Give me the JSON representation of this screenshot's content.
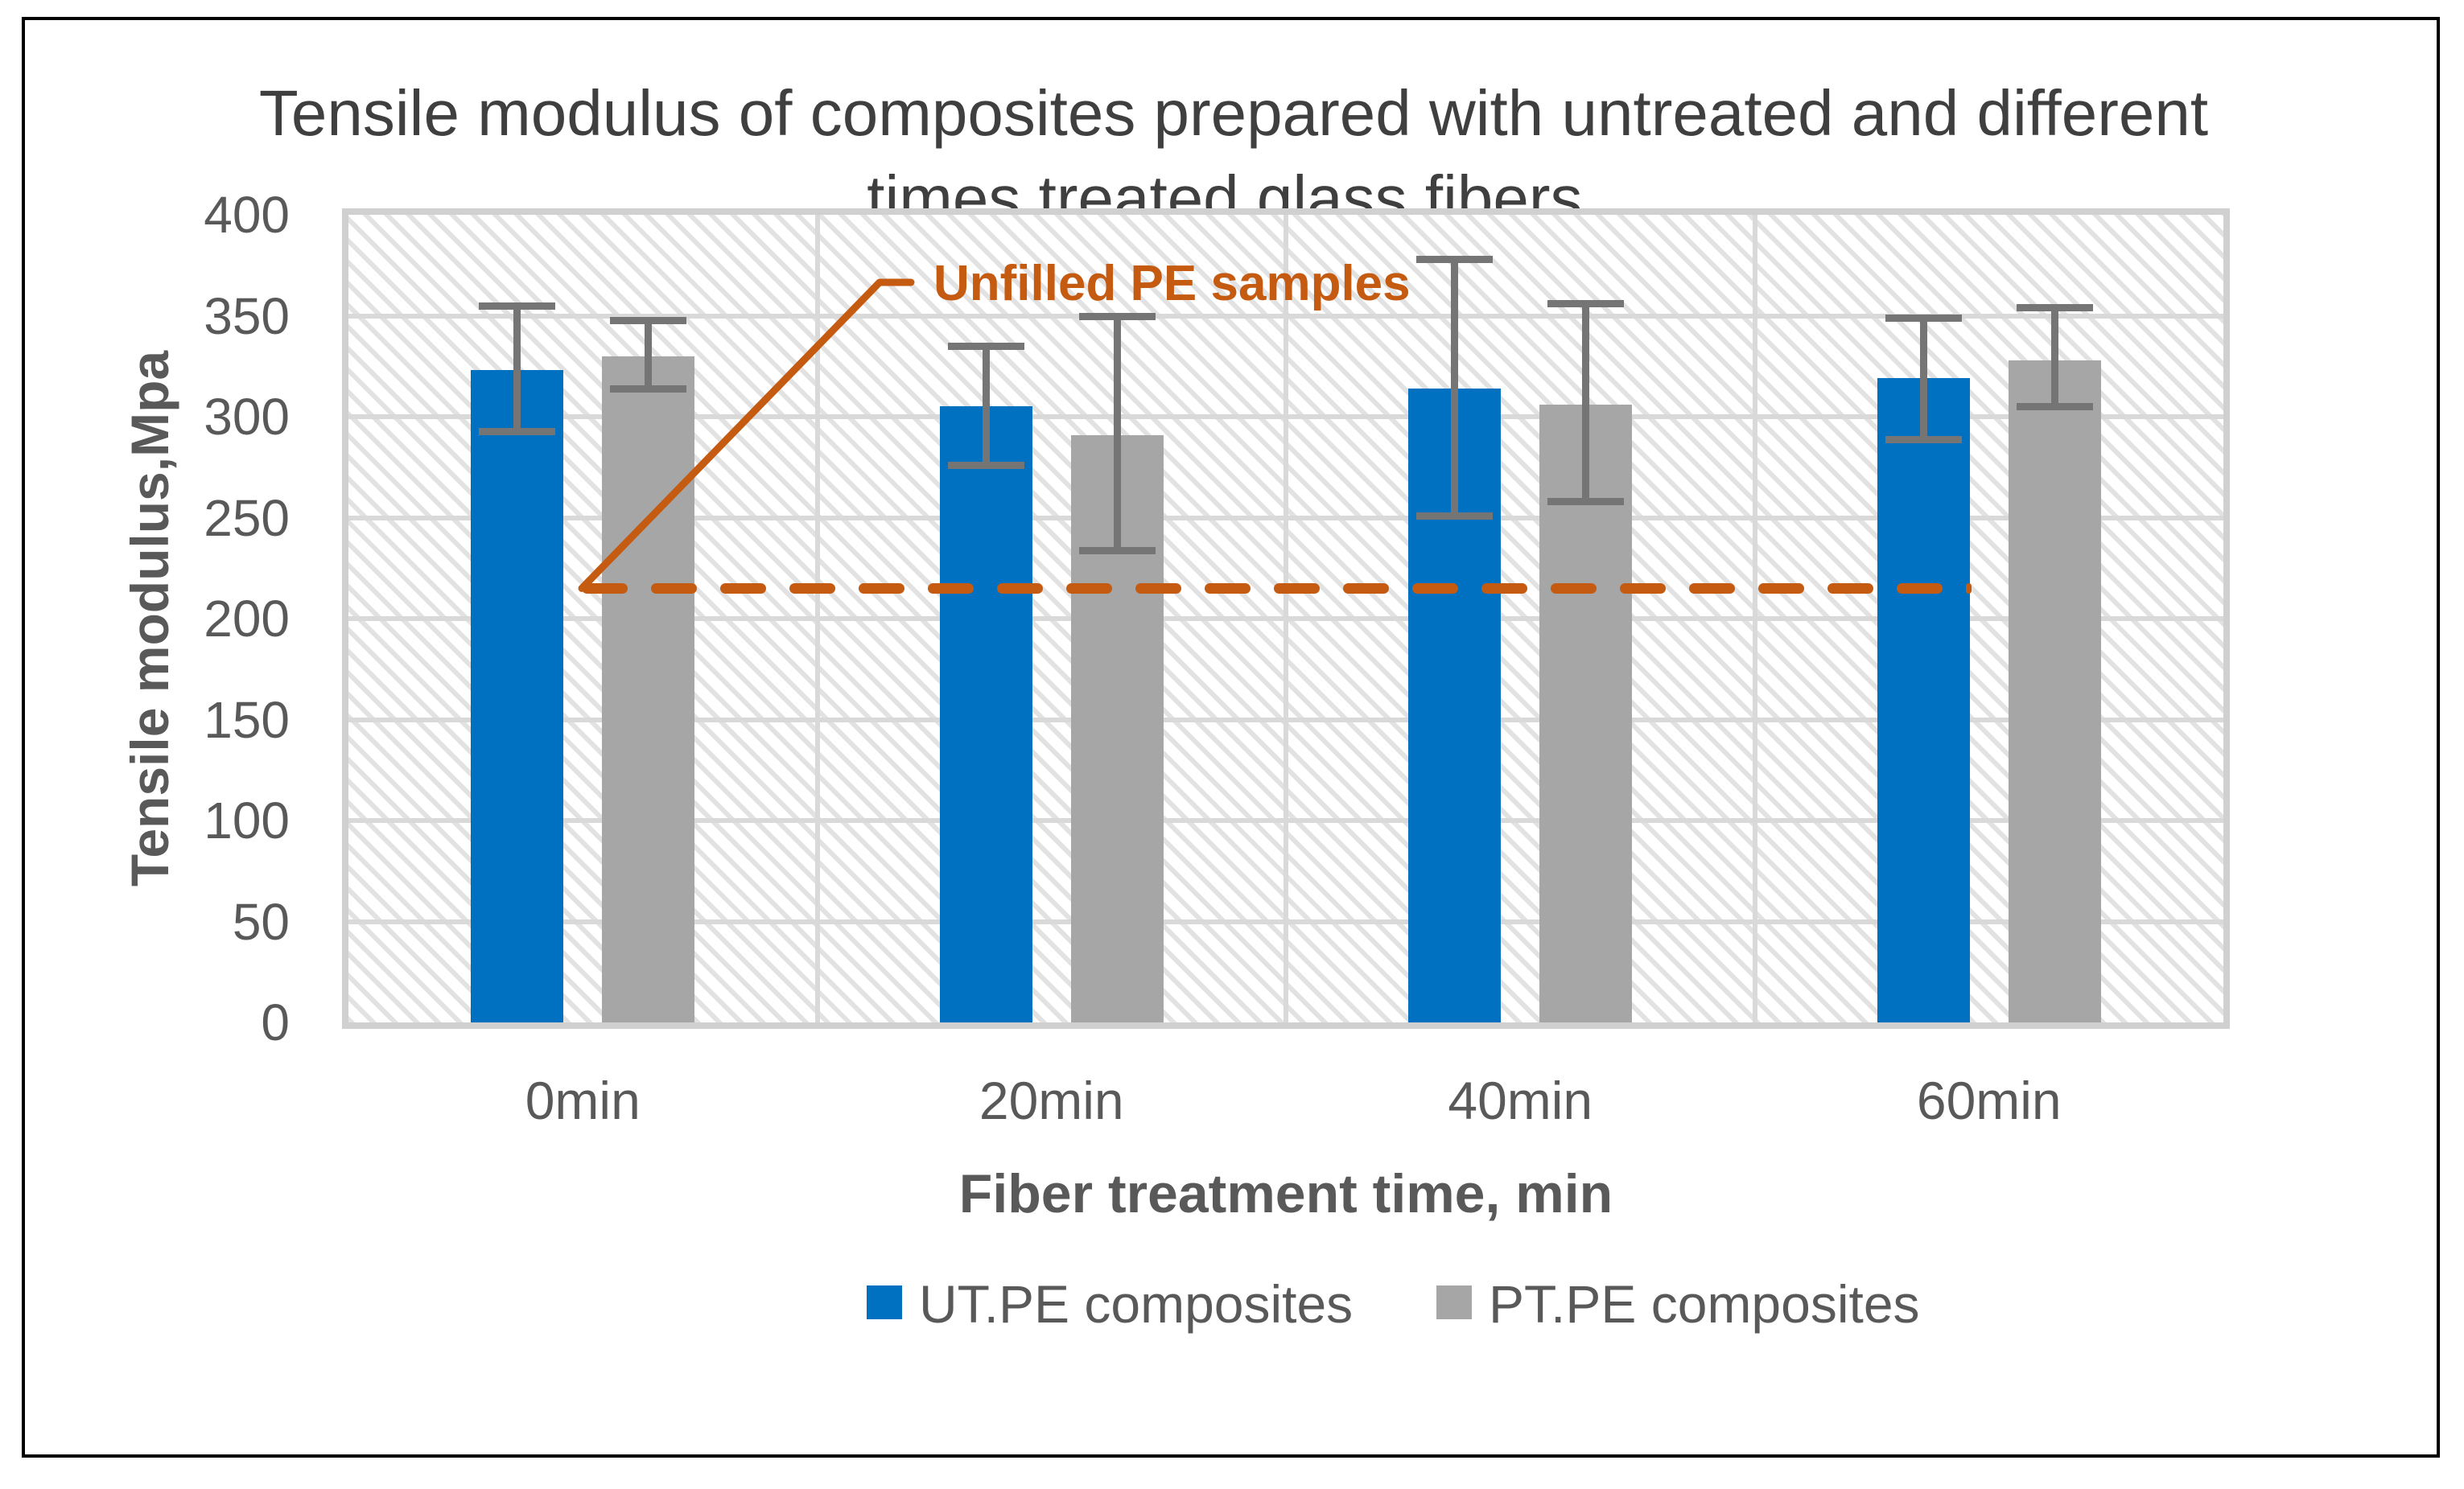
{
  "figure": {
    "title_line1": "Tensile modulus of composites prepared with untreated and different",
    "title_line2": "times treated glass fibers."
  },
  "chart_data": {
    "type": "bar",
    "title": "Tensile modulus of composites prepared with untreated and different times treated glass fibers.",
    "categories": [
      "0min",
      "20min",
      "40min",
      "60min"
    ],
    "series": [
      {
        "name": "UT.PE composites",
        "color": "#0070C0",
        "values": [
          323,
          305,
          314,
          319
        ],
        "error_plus": [
          32,
          30,
          64,
          30
        ],
        "error_minus": [
          30,
          29,
          63,
          30
        ]
      },
      {
        "name": "PT.PE composites",
        "color": "#A6A6A6",
        "values": [
          330,
          291,
          306,
          328
        ],
        "error_plus": [
          18,
          59,
          50,
          26
        ],
        "error_minus": [
          16,
          57,
          48,
          23
        ]
      }
    ],
    "xlabel": "Fiber treatment time, min",
    "ylabel": "Tensile modulus,Mpa",
    "ylim": [
      0,
      400
    ],
    "yticks": [
      0,
      50,
      100,
      150,
      200,
      250,
      300,
      350,
      400
    ],
    "grid": true,
    "legend_position": "bottom",
    "reference_line": {
      "label": "Unfilled PE samples",
      "value": 215,
      "color": "#C55A11",
      "style": "dashed"
    },
    "error_bar_color": "#757575",
    "gridline_color": "#d9d9d9",
    "text_color": "#595959",
    "title_color": "#3f3f3f"
  }
}
